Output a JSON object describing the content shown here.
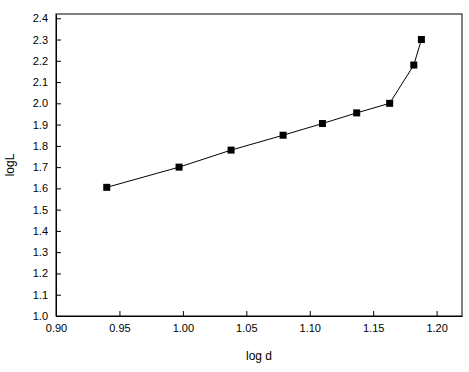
{
  "chart_data": {
    "type": "line",
    "x_label": "log d",
    "y_label": "logL",
    "x": [
      0.94,
      0.997,
      1.038,
      1.079,
      1.11,
      1.137,
      1.163,
      1.182,
      1.188
    ],
    "values": [
      1.605,
      1.7,
      1.78,
      1.85,
      1.905,
      1.955,
      2.0,
      2.18,
      2.3
    ],
    "color": "#000000",
    "marker": "square",
    "line_style": "solid",
    "xlim": [
      0.9,
      1.22
    ],
    "ylim": [
      1.0,
      2.42
    ],
    "xticks": [
      {
        "value": 0.9,
        "label": "0.90"
      },
      0.95,
      {
        "value": 1.0,
        "label": "1.00"
      },
      1.05,
      {
        "value": 1.1,
        "label": "1.10"
      },
      1.15,
      {
        "value": 1.2,
        "label": "1.20"
      }
    ],
    "yticks": [
      {
        "value": 1.0,
        "label": "1.0"
      },
      1.1,
      1.2,
      1.3,
      1.4,
      1.5,
      1.6,
      1.7,
      1.8,
      1.9,
      {
        "value": 2.0,
        "label": "2.0"
      },
      2.1,
      2.2,
      2.3,
      2.4
    ],
    "grid": false
  }
}
